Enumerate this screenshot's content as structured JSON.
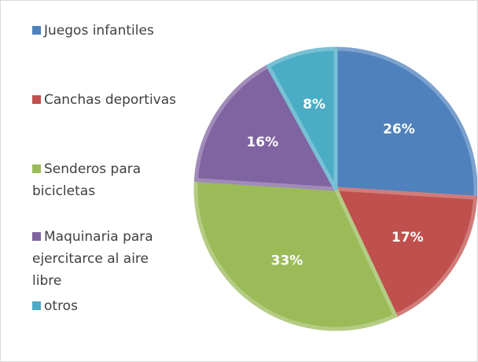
{
  "chart_data": {
    "type": "pie",
    "categories": [
      "Juegos infantiles",
      "Canchas deportivas",
      "Senderos para bicicletas",
      "Maquinaria para ejercitarce al aire libre",
      "otros"
    ],
    "values": [
      26,
      17,
      33,
      16,
      8
    ],
    "value_labels": [
      "26%",
      "17%",
      "33%",
      "16%",
      "8%"
    ],
    "colors": [
      "#4f81bd",
      "#c0504d",
      "#9bbb59",
      "#8064a2",
      "#4bacc6"
    ],
    "legend": "left"
  }
}
